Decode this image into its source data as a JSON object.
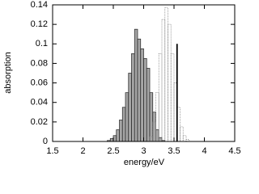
{
  "chart_data": {
    "type": "histogram",
    "xlabel": "energy/eV",
    "ylabel": "absorption",
    "xlim": [
      1.5,
      4.5
    ],
    "ylim": [
      0,
      0.14
    ],
    "xticks": [
      1.5,
      2,
      2.5,
      3,
      3.5,
      4,
      4.5
    ],
    "yticks": [
      0,
      0.02,
      0.04,
      0.06,
      0.08,
      0.1,
      0.12,
      0.14
    ],
    "series": [
      {
        "style": "filled",
        "color": "#a6a6a6",
        "bins": [
          2.4,
          2.45,
          2.5,
          2.55,
          2.6,
          2.65,
          2.7,
          2.75,
          2.8,
          2.85,
          2.9,
          2.95,
          3.0,
          3.05,
          3.1,
          3.15,
          3.2,
          3.25,
          3.3,
          3.35
        ],
        "values": [
          0.001,
          0.003,
          0.006,
          0.012,
          0.022,
          0.035,
          0.05,
          0.07,
          0.09,
          0.115,
          0.105,
          0.095,
          0.085,
          0.075,
          0.05,
          0.03,
          0.012,
          0.004,
          0.001
        ]
      },
      {
        "style": "dotted",
        "color": "#888888",
        "bins": [
          3.1,
          3.15,
          3.2,
          3.25,
          3.3,
          3.35,
          3.4,
          3.45,
          3.5,
          3.55,
          3.6,
          3.65,
          3.7,
          3.75
        ],
        "values": [
          0.005,
          0.02,
          0.05,
          0.09,
          0.125,
          0.137,
          0.12,
          0.09,
          0.06,
          0.035,
          0.015,
          0.006,
          0.002
        ]
      },
      {
        "style": "stick",
        "color": "#000000",
        "x": [
          3.55
        ],
        "values": [
          0.1
        ]
      }
    ]
  }
}
